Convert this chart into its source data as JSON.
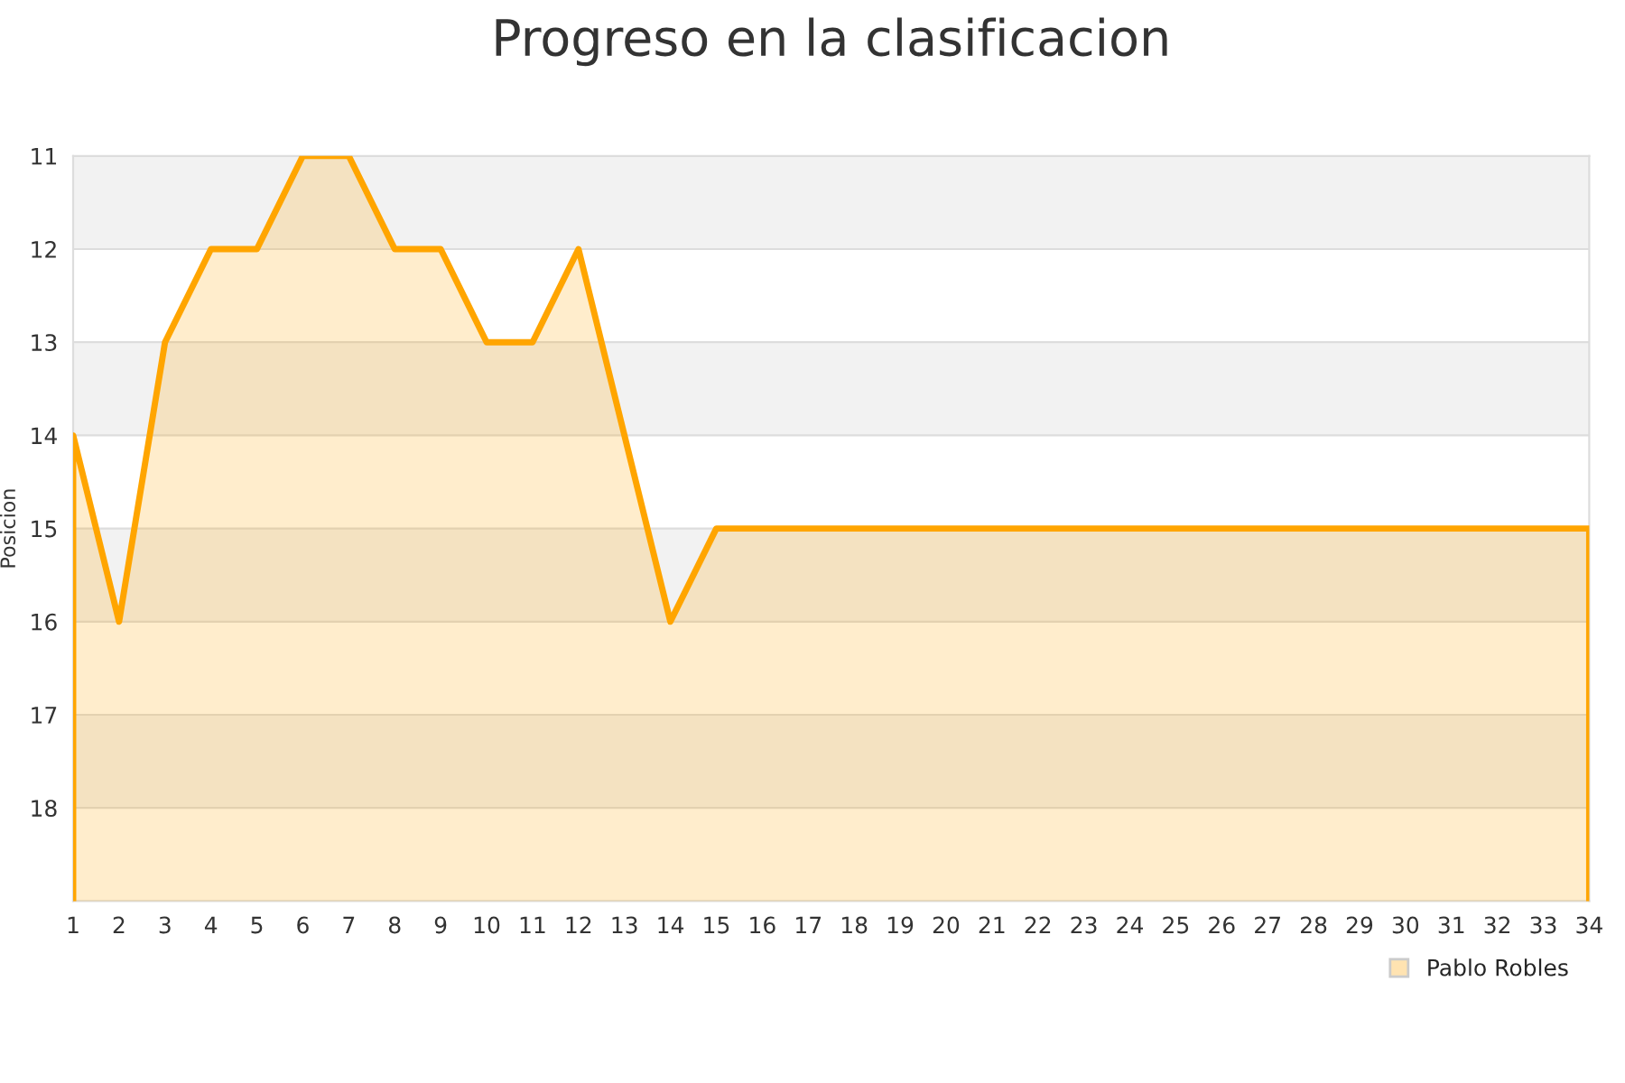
{
  "chart_data": {
    "type": "area",
    "title": "Progreso en la clasificacion",
    "ylabel": "Posicion",
    "x": [
      1,
      2,
      3,
      4,
      5,
      6,
      7,
      8,
      9,
      10,
      11,
      12,
      13,
      14,
      15,
      16,
      17,
      18,
      19,
      20,
      21,
      22,
      23,
      24,
      25,
      26,
      27,
      28,
      29,
      30,
      31,
      32,
      33,
      34
    ],
    "series": [
      {
        "name": "Pablo Robles",
        "color": "#ffa500",
        "values": [
          14,
          16,
          13,
          12,
          12,
          11,
          11,
          12,
          12,
          13,
          13,
          12,
          14,
          16,
          15,
          15,
          15,
          15,
          15,
          15,
          15,
          15,
          15,
          15,
          15,
          15,
          15,
          15,
          15,
          15,
          15,
          15,
          15,
          15
        ]
      }
    ],
    "xlim": [
      1,
      34
    ],
    "xticks": [
      1,
      2,
      3,
      4,
      5,
      6,
      7,
      8,
      9,
      10,
      11,
      12,
      13,
      14,
      15,
      16,
      17,
      18,
      19,
      20,
      21,
      22,
      23,
      24,
      25,
      26,
      27,
      28,
      29,
      30,
      31,
      32,
      33,
      34
    ],
    "ylim": [
      19,
      11
    ],
    "yticks": [
      11,
      12,
      13,
      14,
      15,
      16,
      17,
      18
    ],
    "bands": [
      {
        "axis": "y",
        "from": 11,
        "to": 12,
        "color": "#f2f2f2"
      },
      {
        "axis": "y",
        "from": 13,
        "to": 14,
        "color": "#f2f2f2"
      },
      {
        "axis": "y",
        "from": 15,
        "to": 16,
        "color": "#f2f2f2"
      },
      {
        "axis": "y",
        "from": 17,
        "to": 18,
        "color": "#f2f2f2"
      }
    ],
    "grid": "y",
    "legend": "bottom right",
    "marker": "none",
    "line_style": "solid"
  }
}
